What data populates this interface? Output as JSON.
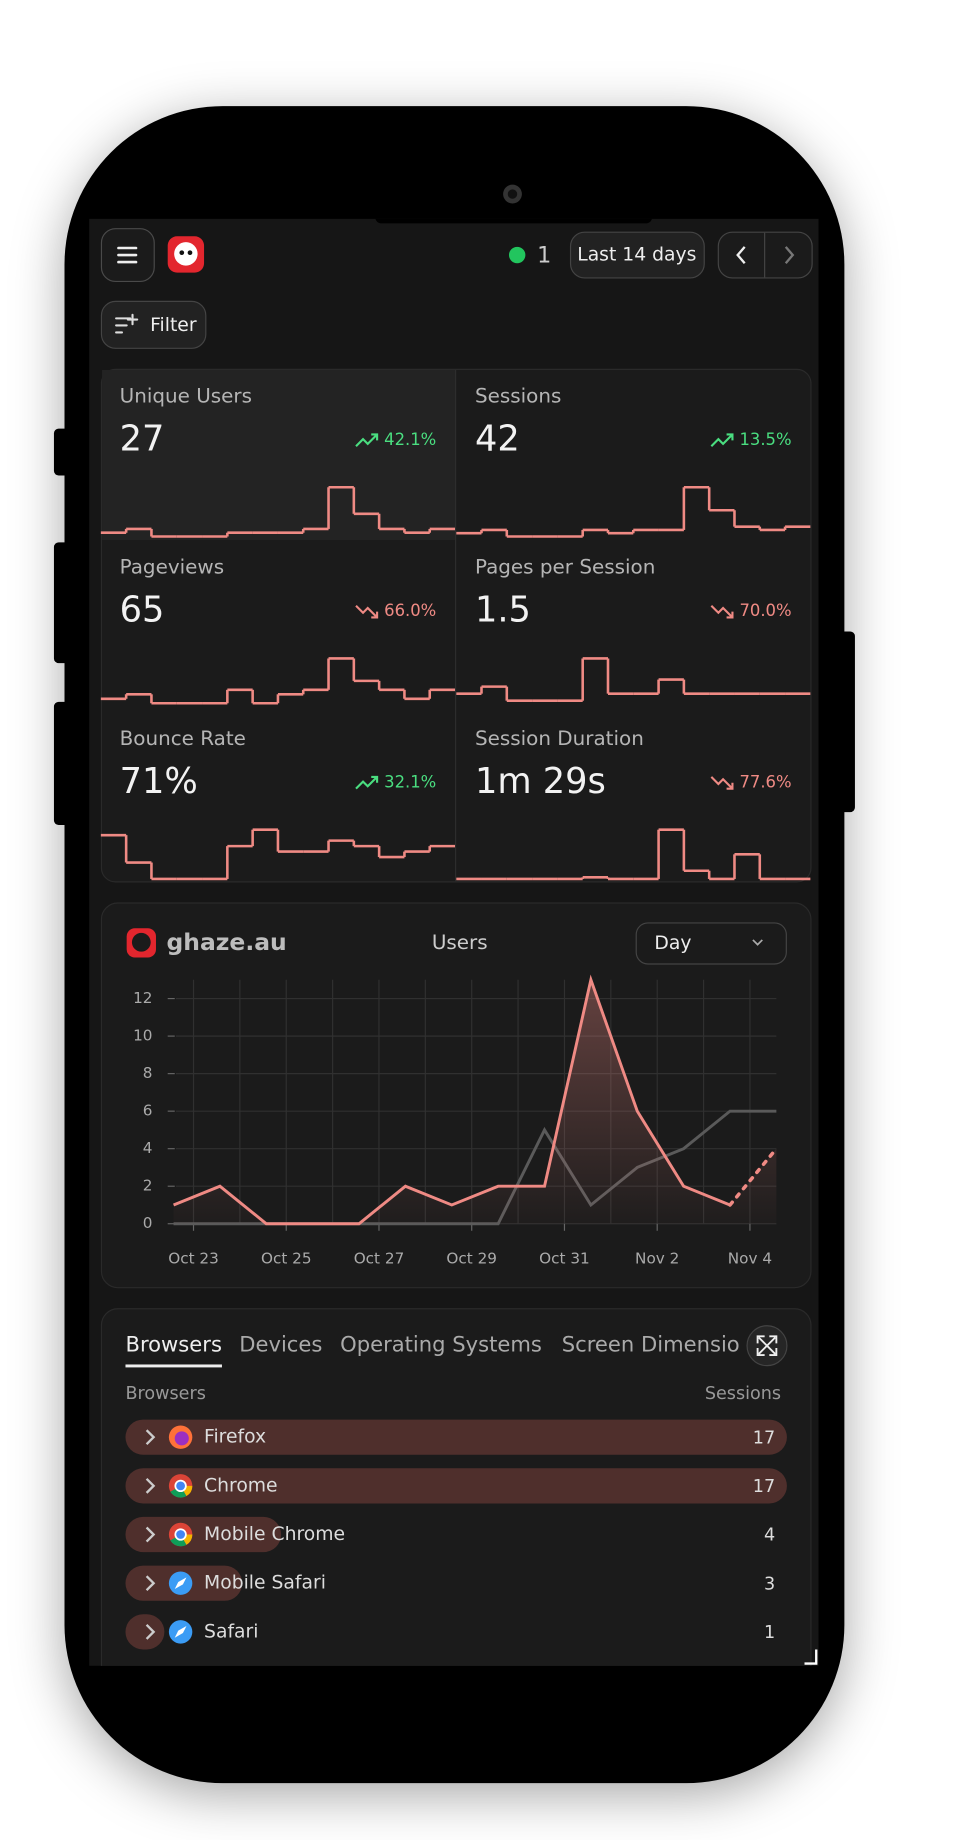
{
  "header": {
    "online": 1,
    "date_range": "Last 14 days",
    "filter": "Filter"
  },
  "stats": [
    {
      "label": "Unique Users",
      "value": 27,
      "change": "42.1%",
      "trend": "up",
      "spark": [
        1,
        2,
        0,
        0,
        0,
        1,
        1,
        1,
        2,
        13,
        6,
        2,
        1,
        2
      ]
    },
    {
      "label": "Sessions",
      "value": 42,
      "change": "13.5%",
      "trend": "up",
      "spark": [
        1,
        2,
        0,
        0,
        0,
        2,
        1,
        2,
        2,
        15,
        8,
        3,
        2,
        3
      ]
    },
    {
      "label": "Pageviews",
      "value": 65,
      "change": "66.0%",
      "trend": "down",
      "spark": [
        2,
        3,
        1,
        1,
        1,
        4,
        1,
        3,
        4,
        11,
        6,
        4,
        2,
        4
      ]
    },
    {
      "label": "Pages per Session",
      "value": 1.5,
      "change": "70.0%",
      "trend": "down",
      "spark": [
        2,
        3,
        1,
        1,
        1,
        7,
        2,
        2,
        4,
        2,
        2,
        2,
        2,
        2
      ]
    },
    {
      "label": "Bounce Rate",
      "value": "71%",
      "change": "32.1%",
      "trend": "up",
      "spark": [
        8,
        3,
        0,
        0,
        0,
        6,
        9,
        5,
        5,
        7,
        6,
        4,
        5,
        6
      ]
    },
    {
      "label": "Session Duration",
      "value": "1m 29s",
      "change": "77.6%",
      "trend": "down",
      "spark": [
        0,
        0,
        0,
        0,
        0,
        0.2,
        0,
        0,
        6,
        1,
        0,
        3,
        0,
        0
      ]
    }
  ],
  "chart": {
    "type": "line",
    "site": "ghaze.au",
    "title": "Users",
    "interval": "Day",
    "x": [
      -0.43,
      0.57,
      1.57,
      2.57,
      3.57,
      4.57,
      5.57,
      6.57,
      7.57,
      8.57,
      9.57,
      10.57,
      11.57,
      12.57
    ],
    "xlim": [
      -0.43,
      12.57
    ],
    "x_minor_step": 1,
    "xticks": [
      {
        "value": 0,
        "label": "Oct 23"
      },
      {
        "value": 2,
        "label": "Oct 25"
      },
      {
        "value": 4,
        "label": "Oct 27"
      },
      {
        "value": 6,
        "label": "Oct 29"
      },
      {
        "value": 8,
        "label": "Oct 31"
      },
      {
        "value": 10,
        "label": "Nov 2"
      },
      {
        "value": 12,
        "label": "Nov 4"
      }
    ],
    "ylim": [
      0,
      13
    ],
    "yticks": [
      0,
      2,
      4,
      6,
      8,
      10,
      12
    ],
    "grid": true,
    "series": [
      {
        "color": "#5a5a5a",
        "values": [
          0,
          0,
          0,
          0,
          0,
          0,
          0,
          0,
          5,
          1,
          3,
          4,
          6,
          6
        ]
      },
      {
        "color": "#ef8a84",
        "values": [
          1,
          2,
          0,
          0,
          0,
          2,
          1,
          2,
          2,
          13,
          6,
          2,
          1,
          4
        ],
        "dotted_last": true,
        "area": true
      }
    ]
  },
  "table": {
    "tabs": [
      "Browsers",
      "Devices",
      "Operating Systems",
      "Screen Dimensions"
    ],
    "active_tab": 0,
    "columns": [
      "Browsers",
      "Sessions"
    ],
    "rows": [
      {
        "name": "Firefox",
        "sessions": 17,
        "icon": "firefox"
      },
      {
        "name": "Chrome",
        "sessions": 17,
        "icon": "chrome"
      },
      {
        "name": "Mobile Chrome",
        "sessions": 4,
        "icon": "chrome"
      },
      {
        "name": "Mobile Safari",
        "sessions": 3,
        "icon": "safari"
      },
      {
        "name": "Safari",
        "sessions": 1,
        "icon": "safari"
      }
    ]
  }
}
